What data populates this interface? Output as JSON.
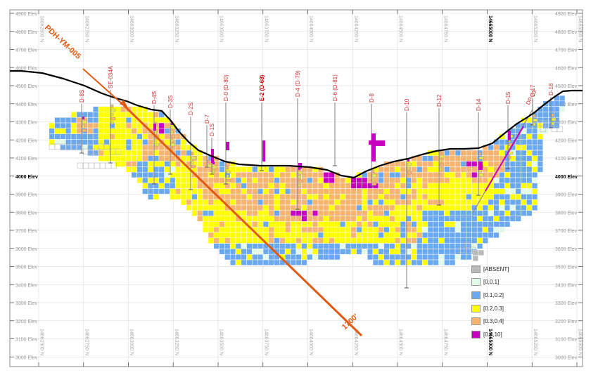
{
  "section": {
    "elevation_labels": [
      "4900 Elev",
      "4800 Elev",
      "4700 Elev",
      "4600 Elev",
      "4500 Elev",
      "4400 Elev",
      "4300 Elev",
      "4200 Elev",
      "4100 Elev",
      "4000 Elev",
      "3900 Elev",
      "3800 Elev",
      "3700 Elev",
      "3600 Elev",
      "3500 Elev",
      "3400 Elev",
      "3300 Elev",
      "3200 Elev",
      "3100 Elev",
      "3000 Elev"
    ],
    "bold_elevation": "4000 Elev",
    "northing_labels": [
      "14662500 N",
      "14662750 N",
      "14663000 N",
      "14663250 N",
      "14663500 N",
      "14663750 N",
      "14664000 N",
      "14664250 N",
      "14664500 N",
      "14664750 N",
      "14665000 N",
      "14665250 N",
      "14665500 N"
    ],
    "bold_northing": "14665000 N"
  },
  "main_hole": {
    "label": "PDH-YM-005",
    "end_label": "1700'",
    "color": "#e05a14"
  },
  "holes": [
    {
      "label": "D-8S"
    },
    {
      "label": "SE-034A"
    },
    {
      "label": "D-4S"
    },
    {
      "label": "D-3S"
    },
    {
      "label": "D-2S"
    },
    {
      "label": "D-7"
    },
    {
      "label": "D-1S"
    },
    {
      "label": "D-0 (D-80)"
    },
    {
      "label": "E-2 (D-68)"
    },
    {
      "label": "D-4 (D-79)"
    },
    {
      "label": "D-6 (D-81)"
    },
    {
      "label": "D-8"
    },
    {
      "label": "D-10"
    },
    {
      "label": "D-12"
    },
    {
      "label": "D-14"
    },
    {
      "label": "D-15"
    },
    {
      "label": "D-17"
    },
    {
      "label": "D-18"
    },
    {
      "label": "DP-23"
    }
  ],
  "legend": [
    {
      "label": "[ABSENT]",
      "color": "#b9b9b9"
    },
    {
      "label": "[0,0.1]",
      "color": "#e3fae8"
    },
    {
      "label": "[0.1,0.2]",
      "color": "#6aa8f0"
    },
    {
      "label": "[0.2,0.3]",
      "color": "#ffff00"
    },
    {
      "label": "[0.3,0.4]",
      "color": "#f7b470"
    },
    {
      "label": "[0.4,10]",
      "color": "#c800c0"
    }
  ]
}
